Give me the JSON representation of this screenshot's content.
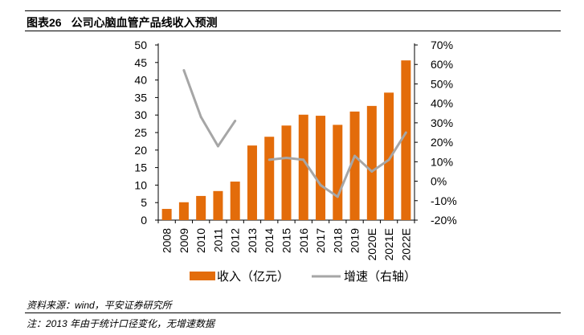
{
  "header": {
    "figure_label": "图表26",
    "figure_title": "公司心脑血管产品线收入预测"
  },
  "footer": {
    "source": "资料来源：wind，平安证券研究所",
    "note": "注：2013 年由于统计口径变化，无增速数据"
  },
  "colors": {
    "bar": "#E36C0A",
    "line": "#A6A6A6"
  },
  "chart_data": {
    "type": "bar+line",
    "categories": [
      "2008",
      "2009",
      "2010",
      "2011",
      "2012",
      "2013",
      "2014",
      "2015",
      "2016",
      "2017",
      "2018",
      "2019",
      "2020E",
      "2021E",
      "2022E"
    ],
    "series": [
      {
        "name": "收入（亿元）",
        "type": "bar",
        "axis": "left",
        "values": [
          3.2,
          5.1,
          6.9,
          8.3,
          11.0,
          21.3,
          23.8,
          27.0,
          30.1,
          29.8,
          27.2,
          31.0,
          32.6,
          36.4,
          45.6
        ]
      },
      {
        "name": "增速（右轴）",
        "type": "line",
        "axis": "right",
        "values": [
          null,
          0.57,
          0.33,
          0.18,
          0.31,
          null,
          0.11,
          0.12,
          0.11,
          -0.02,
          -0.08,
          0.13,
          0.05,
          0.11,
          0.25
        ]
      }
    ],
    "y_left": {
      "min": 0,
      "max": 50,
      "step": 5,
      "tick_labels": [
        "0",
        "5",
        "10",
        "15",
        "20",
        "25",
        "30",
        "35",
        "40",
        "45",
        "50"
      ]
    },
    "y_right": {
      "min": -0.2,
      "max": 0.7,
      "step": 0.1,
      "tick_labels": [
        "-20%",
        "-10%",
        "0%",
        "10%",
        "20%",
        "30%",
        "40%",
        "50%",
        "60%",
        "70%"
      ]
    },
    "legend": {
      "position": "bottom",
      "items": [
        "收入（亿元）",
        "增速（右轴）"
      ]
    },
    "grid": false
  }
}
